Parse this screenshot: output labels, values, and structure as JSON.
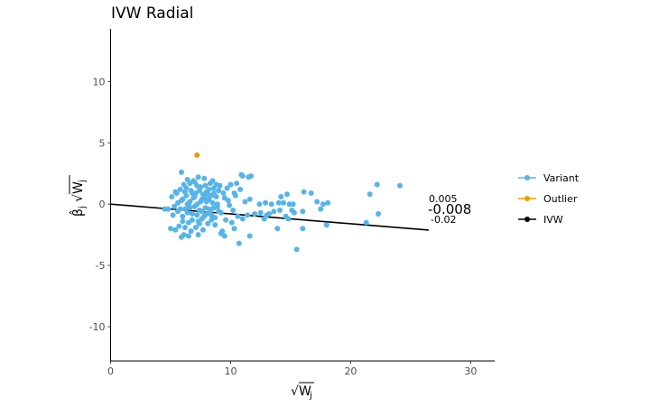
{
  "chart_data": {
    "type": "scatter",
    "title": "IVW Radial",
    "xlabel": "√W_j",
    "ylabel": "β̂_j √W_j",
    "xlim": [
      0,
      32
    ],
    "ylim": [
      -12.8,
      14.3
    ],
    "x_ticks": [
      0,
      10,
      20,
      30
    ],
    "y_ticks": [
      -10,
      -5,
      0,
      5,
      10
    ],
    "colors": {
      "variant": "#56B4E9",
      "outlier": "#E69F00",
      "ivw": "#000000"
    },
    "series": [
      {
        "name": "Variant",
        "color": "#56B4E9",
        "points": [
          [
            5.1,
            0.6
          ],
          [
            5.3,
            -0.2
          ],
          [
            5.5,
            0.9
          ],
          [
            5.6,
            -0.6
          ],
          [
            5.8,
            1.2
          ],
          [
            5.9,
            0.3
          ],
          [
            6.0,
            -1.0
          ],
          [
            6.1,
            1.6
          ],
          [
            6.2,
            -0.4
          ],
          [
            6.3,
            0.7
          ],
          [
            6.4,
            2.0
          ],
          [
            6.5,
            -1.5
          ],
          [
            6.6,
            0.2
          ],
          [
            6.7,
            1.1
          ],
          [
            6.8,
            -0.8
          ],
          [
            6.9,
            0.5
          ],
          [
            7.0,
            1.8
          ],
          [
            7.1,
            -1.9
          ],
          [
            7.2,
            0.0
          ],
          [
            7.3,
            2.2
          ],
          [
            7.4,
            -0.5
          ],
          [
            7.5,
            1.4
          ],
          [
            7.6,
            -1.2
          ],
          [
            7.7,
            0.8
          ],
          [
            7.8,
            2.1
          ],
          [
            7.9,
            -0.3
          ],
          [
            8.0,
            1.0
          ],
          [
            8.1,
            -1.6
          ],
          [
            8.2,
            0.4
          ],
          [
            8.3,
            1.7
          ],
          [
            8.4,
            -0.9
          ],
          [
            8.5,
            0.1
          ],
          [
            8.6,
            1.3
          ],
          [
            8.7,
            -1.1
          ],
          [
            8.8,
            0.6
          ],
          [
            8.9,
            -0.2
          ],
          [
            9.0,
            1.1
          ],
          [
            9.2,
            -0.7
          ],
          [
            9.4,
            0.9
          ],
          [
            9.6,
            -1.3
          ],
          [
            9.8,
            0.3
          ],
          [
            10.0,
            1.6
          ],
          [
            10.2,
            -0.5
          ],
          [
            10.4,
            0.7
          ],
          [
            10.6,
            -1.0
          ],
          [
            10.8,
            1.2
          ],
          [
            5.2,
            -0.9
          ],
          [
            5.4,
            1.0
          ],
          [
            5.7,
            -1.8
          ],
          [
            5.9,
            2.6
          ],
          [
            6.1,
            -2.5
          ],
          [
            6.3,
            1.3
          ],
          [
            6.5,
            -0.1
          ],
          [
            6.7,
            -2.2
          ],
          [
            6.9,
            1.9
          ],
          [
            7.1,
            0.9
          ],
          [
            7.3,
            -1.4
          ],
          [
            7.5,
            0.2
          ],
          [
            7.7,
            -2.1
          ],
          [
            7.9,
            1.5
          ],
          [
            8.1,
            0.8
          ],
          [
            8.3,
            -0.6
          ],
          [
            8.5,
            1.9
          ],
          [
            8.7,
            -1.7
          ],
          [
            8.9,
            0.0
          ],
          [
            9.1,
            1.5
          ],
          [
            9.3,
            -2.2
          ],
          [
            9.5,
            0.5
          ],
          [
            9.7,
            1.3
          ],
          [
            9.9,
            -0.1
          ],
          [
            10.1,
            -1.5
          ],
          [
            10.3,
            0.9
          ],
          [
            6.0,
            0.4
          ],
          [
            6.2,
            1.0
          ],
          [
            6.4,
            -0.7
          ],
          [
            6.6,
            1.7
          ],
          [
            6.8,
            -1.3
          ],
          [
            7.0,
            0.6
          ],
          [
            7.2,
            -0.9
          ],
          [
            7.4,
            1.1
          ],
          [
            7.6,
            0.4
          ],
          [
            7.8,
            -1.0
          ],
          [
            8.0,
            0.2
          ],
          [
            8.2,
            -0.4
          ],
          [
            8.4,
            0.7
          ],
          [
            8.6,
            -0.3
          ],
          [
            8.8,
            1.6
          ],
          [
            9.0,
            -0.6
          ],
          [
            5.6,
            0.1
          ],
          [
            5.8,
            -0.4
          ],
          [
            6.0,
            -1.4
          ],
          [
            6.2,
            -1.9
          ],
          [
            6.4,
            0.0
          ],
          [
            6.6,
            -0.3
          ],
          [
            6.8,
            0.9
          ],
          [
            7.0,
            -0.2
          ],
          [
            7.2,
            1.5
          ],
          [
            7.4,
            -1.6
          ],
          [
            7.6,
            -0.6
          ],
          [
            7.8,
            0.5
          ],
          [
            8.0,
            -0.8
          ],
          [
            8.2,
            1.2
          ],
          [
            8.4,
            -1.3
          ],
          [
            8.6,
            0.9
          ],
          [
            4.5,
            -0.4
          ],
          [
            4.8,
            -0.4
          ],
          [
            5.0,
            -2.0
          ],
          [
            5.4,
            -2.1
          ],
          [
            5.9,
            -2.7
          ],
          [
            6.5,
            -2.6
          ],
          [
            7.3,
            -2.5
          ],
          [
            9.2,
            -2.4
          ],
          [
            9.5,
            -2.6
          ],
          [
            10.3,
            -2.0
          ],
          [
            11.0,
            -1.2
          ],
          [
            11.4,
            -0.9
          ],
          [
            12.0,
            -0.8
          ],
          [
            12.5,
            -0.7
          ],
          [
            13.0,
            -0.9
          ],
          [
            11.2,
            0.2
          ],
          [
            11.6,
            0.4
          ],
          [
            12.4,
            0.0
          ],
          [
            12.9,
            0.1
          ],
          [
            13.4,
            0.0
          ],
          [
            14.0,
            0.1
          ],
          [
            14.4,
            0.1
          ],
          [
            15.2,
            0.0
          ],
          [
            11.0,
            2.3
          ],
          [
            11.5,
            2.2
          ],
          [
            11.7,
            2.3
          ],
          [
            10.5,
            1.7
          ],
          [
            10.9,
            2.4
          ],
          [
            10.7,
            -3.2
          ],
          [
            11.6,
            -2.6
          ],
          [
            12.8,
            -1.2
          ],
          [
            13.2,
            -0.8
          ],
          [
            13.6,
            -0.6
          ],
          [
            14.1,
            -0.5
          ],
          [
            14.6,
            -1.0
          ],
          [
            14.8,
            -1.2
          ],
          [
            15.3,
            -0.7
          ],
          [
            15.1,
            -0.5
          ],
          [
            14.2,
            0.6
          ],
          [
            14.7,
            0.8
          ],
          [
            13.9,
            -2.0
          ],
          [
            16.0,
            -2.0
          ],
          [
            16.1,
            1.0
          ],
          [
            16.7,
            0.9
          ],
          [
            17.2,
            0.2
          ],
          [
            17.5,
            -0.4
          ],
          [
            17.7,
            0.0
          ],
          [
            18.1,
            0.1
          ],
          [
            15.5,
            -3.7
          ],
          [
            18.0,
            -1.7
          ],
          [
            21.3,
            -1.5
          ],
          [
            21.6,
            0.8
          ],
          [
            22.2,
            1.6
          ],
          [
            22.3,
            -0.8
          ],
          [
            24.1,
            1.5
          ],
          [
            16.0,
            -0.6
          ],
          [
            14.9,
            0.0
          ]
        ]
      },
      {
        "name": "Outlier",
        "color": "#E69F00",
        "points": [
          [
            7.2,
            4.0
          ]
        ]
      }
    ],
    "ivw": {
      "name": "IVW",
      "slope": -0.008,
      "slope_label": "-0.008",
      "upper_label": "0.005",
      "lower_label": "-0.02",
      "x_end": 26.5
    },
    "legend": {
      "position": "right",
      "items": [
        {
          "label": "Variant",
          "color": "#56B4E9"
        },
        {
          "label": "Outlier",
          "color": "#E69F00"
        },
        {
          "label": "IVW",
          "color": "#000000"
        }
      ]
    },
    "grid": false
  }
}
